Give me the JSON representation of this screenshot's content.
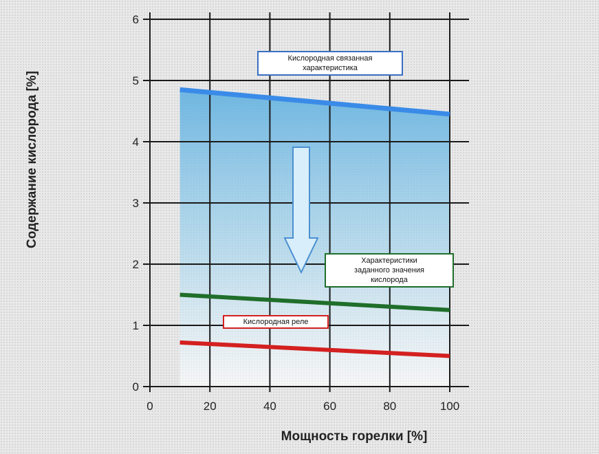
{
  "chart_data": {
    "type": "line",
    "xlabel": "Мощность горелки [%]",
    "ylabel": "Содержание кислорода [%]",
    "xlim": [
      0,
      100
    ],
    "ylim": [
      0,
      6
    ],
    "xticks": [
      0,
      20,
      40,
      60,
      80,
      100
    ],
    "yticks": [
      0,
      1,
      2,
      3,
      4,
      5,
      6
    ],
    "grid": true,
    "series": [
      {
        "name": "Кислородная связанная характеристика",
        "color": "#3a8be8",
        "x": [
          10,
          100
        ],
        "y": [
          4.85,
          4.45
        ]
      },
      {
        "name": "Характеристики заданного значения кислорода",
        "color": "#1f6e2a",
        "x": [
          10,
          100
        ],
        "y": [
          1.5,
          1.25
        ]
      },
      {
        "name": "Кислородная реле",
        "color": "#d42020",
        "x": [
          10,
          100
        ],
        "y": [
          0.72,
          0.5
        ]
      }
    ],
    "shaded_region": {
      "x": [
        10,
        100
      ],
      "color": "#8ecae8"
    },
    "annotations": {
      "top_label": [
        "Кислородная связанная",
        "характеристика"
      ],
      "mid_label": [
        "Характеристики",
        "заданного значения",
        "кислорода"
      ],
      "low_label": [
        "Кислородная реле"
      ]
    }
  }
}
